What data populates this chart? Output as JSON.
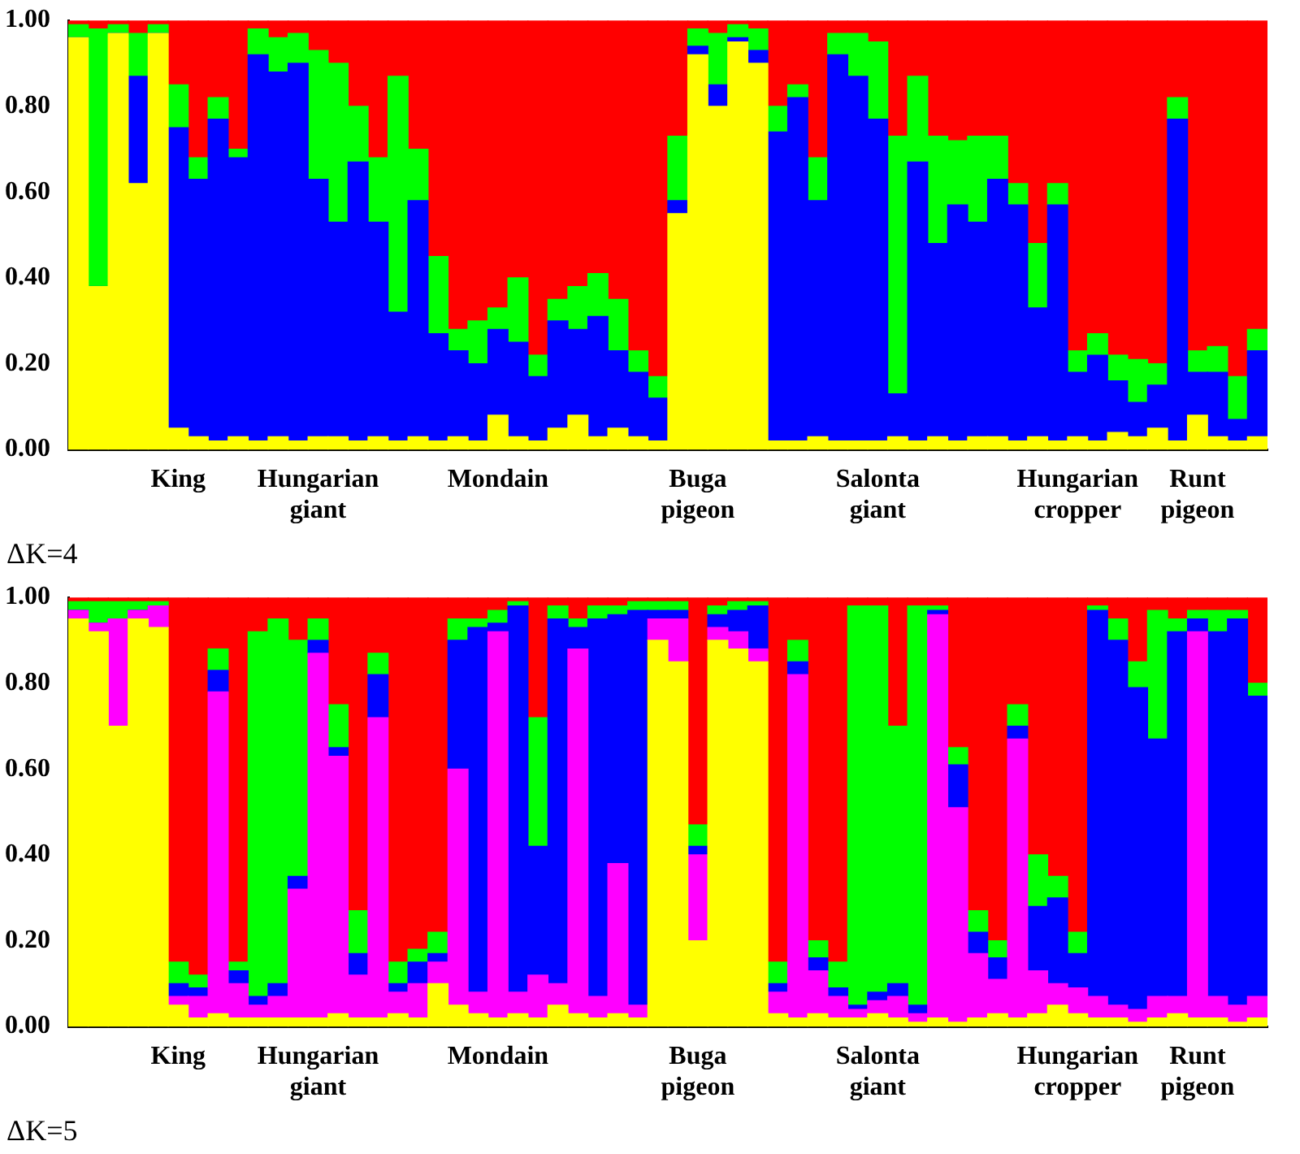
{
  "chart_data": [
    {
      "type": "bar",
      "stacked": true,
      "grid": false,
      "legend": false,
      "ylim": [
        0,
        1
      ],
      "yticks": [
        {
          "value": 0,
          "label": "0.00"
        },
        {
          "value": 0.2,
          "label": "0.20"
        },
        {
          "value": 0.4,
          "label": "0.40"
        },
        {
          "value": 0.6,
          "label": "0.60"
        },
        {
          "value": 0.8,
          "label": "0.80"
        },
        {
          "value": 1,
          "label": "1.00"
        }
      ],
      "categories": [
        null,
        null,
        null,
        null,
        null,
        "King",
        null,
        null,
        null,
        null,
        null,
        null,
        "Hungarian giant",
        null,
        null,
        null,
        null,
        null,
        null,
        null,
        null,
        "Mondain",
        null,
        null,
        null,
        null,
        null,
        null,
        null,
        null,
        null,
        "Buga pigeon",
        null,
        null,
        null,
        null,
        null,
        null,
        null,
        null,
        "Salonta giant",
        null,
        null,
        null,
        null,
        null,
        null,
        null,
        null,
        null,
        "Hungarian cropper",
        null,
        null,
        null,
        null,
        null,
        "Runt pigeon",
        null,
        null,
        null
      ],
      "series": [
        {
          "color": "#ffff00",
          "values": [
            0.96,
            0.38,
            0.97,
            0.62,
            0.97,
            0.05,
            0.03,
            0.02,
            0.03,
            0.02,
            0.03,
            0.02,
            0.03,
            0.03,
            0.02,
            0.03,
            0.02,
            0.03,
            0.02,
            0.03,
            0.02,
            0.08,
            0.03,
            0.02,
            0.05,
            0.08,
            0.03,
            0.05,
            0.03,
            0.02,
            0.55,
            0.92,
            0.8,
            0.95,
            0.9,
            0.02,
            0.02,
            0.03,
            0.02,
            0.02,
            0.02,
            0.03,
            0.02,
            0.03,
            0.02,
            0.03,
            0.03,
            0.02,
            0.03,
            0.02,
            0.03,
            0.02,
            0.04,
            0.03,
            0.05,
            0.02,
            0.08,
            0.03,
            0.02,
            0.03
          ]
        },
        {
          "color": "#0000ff",
          "values": [
            0,
            0,
            0,
            0.25,
            0,
            0.7,
            0.6,
            0.75,
            0.65,
            0.9,
            0.85,
            0.88,
            0.6,
            0.5,
            0.65,
            0.5,
            0.3,
            0.55,
            0.25,
            0.2,
            0.18,
            0.2,
            0.22,
            0.15,
            0.25,
            0.2,
            0.28,
            0.18,
            0.15,
            0.1,
            0.03,
            0.02,
            0.05,
            0.01,
            0.03,
            0.72,
            0.8,
            0.55,
            0.9,
            0.85,
            0.75,
            0.1,
            0.65,
            0.45,
            0.55,
            0.5,
            0.6,
            0.55,
            0.3,
            0.55,
            0.15,
            0.2,
            0.12,
            0.08,
            0.1,
            0.75,
            0.1,
            0.15,
            0.05,
            0.2
          ]
        },
        {
          "color": "#00ff00",
          "values": [
            0.03,
            0.6,
            0.02,
            0.1,
            0.02,
            0.1,
            0.05,
            0.05,
            0.02,
            0.06,
            0.08,
            0.07,
            0.3,
            0.37,
            0.13,
            0.15,
            0.55,
            0.12,
            0.18,
            0.05,
            0.1,
            0.05,
            0.15,
            0.05,
            0.05,
            0.1,
            0.1,
            0.12,
            0.05,
            0.05,
            0.15,
            0.04,
            0.12,
            0.03,
            0.05,
            0.06,
            0.03,
            0.1,
            0.05,
            0.1,
            0.18,
            0.6,
            0.2,
            0.25,
            0.15,
            0.2,
            0.1,
            0.05,
            0.15,
            0.05,
            0.05,
            0.05,
            0.06,
            0.1,
            0.05,
            0.05,
            0.05,
            0.06,
            0.1,
            0.05
          ]
        },
        {
          "color": "#ff0000",
          "values": [
            0.01,
            0.02,
            0.01,
            0.03,
            0.01,
            0.15,
            0.32,
            0.18,
            0.3,
            0.02,
            0.04,
            0.03,
            0.07,
            0.1,
            0.2,
            0.32,
            0.13,
            0.3,
            0.55,
            0.72,
            0.7,
            0.67,
            0.6,
            0.78,
            0.65,
            0.62,
            0.59,
            0.65,
            0.77,
            0.83,
            0.27,
            0.02,
            0.03,
            0.01,
            0.02,
            0.2,
            0.15,
            0.32,
            0.03,
            0.03,
            0.05,
            0.27,
            0.13,
            0.27,
            0.28,
            0.27,
            0.27,
            0.38,
            0.52,
            0.38,
            0.77,
            0.73,
            0.78,
            0.79,
            0.8,
            0.18,
            0.77,
            0.76,
            0.83,
            0.72
          ]
        }
      ],
      "annotations": [
        "ΔK=4"
      ]
    },
    {
      "type": "bar",
      "stacked": true,
      "grid": false,
      "legend": false,
      "ylim": [
        0,
        1
      ],
      "yticks": [
        {
          "value": 0,
          "label": "0.00"
        },
        {
          "value": 0.2,
          "label": "0.20"
        },
        {
          "value": 0.4,
          "label": "0.40"
        },
        {
          "value": 0.6,
          "label": "0.60"
        },
        {
          "value": 0.8,
          "label": "0.80"
        },
        {
          "value": 1,
          "label": "1.00"
        }
      ],
      "categories": [
        null,
        null,
        null,
        null,
        null,
        "King",
        null,
        null,
        null,
        null,
        null,
        null,
        "Hungarian giant",
        null,
        null,
        null,
        null,
        null,
        null,
        null,
        null,
        "Mondain",
        null,
        null,
        null,
        null,
        null,
        null,
        null,
        null,
        null,
        "Buga pigeon",
        null,
        null,
        null,
        null,
        null,
        null,
        null,
        null,
        "Salonta giant",
        null,
        null,
        null,
        null,
        null,
        null,
        null,
        null,
        null,
        "Hungarian cropper",
        null,
        null,
        null,
        null,
        null,
        "Runt pigeon",
        null,
        null,
        null
      ],
      "series": [
        {
          "color": "#ffff00",
          "values": [
            0.95,
            0.92,
            0.7,
            0.95,
            0.93,
            0.05,
            0.02,
            0.03,
            0.02,
            0.02,
            0.02,
            0.02,
            0.02,
            0.03,
            0.02,
            0.02,
            0.03,
            0.02,
            0.1,
            0.05,
            0.03,
            0.02,
            0.03,
            0.02,
            0.05,
            0.03,
            0.02,
            0.03,
            0.02,
            0.9,
            0.85,
            0.2,
            0.9,
            0.88,
            0.85,
            0.03,
            0.02,
            0.03,
            0.02,
            0.02,
            0.03,
            0.02,
            0.01,
            0.02,
            0.01,
            0.02,
            0.03,
            0.02,
            0.03,
            0.05,
            0.03,
            0.02,
            0.02,
            0.01,
            0.02,
            0.03,
            0.02,
            0.02,
            0.01,
            0.02
          ]
        },
        {
          "color": "#ff00ff",
          "values": [
            0.02,
            0.02,
            0.25,
            0.02,
            0.05,
            0.02,
            0.05,
            0.75,
            0.08,
            0.03,
            0.05,
            0.3,
            0.85,
            0.6,
            0.1,
            0.7,
            0.05,
            0.08,
            0.05,
            0.55,
            0.05,
            0.9,
            0.05,
            0.1,
            0.05,
            0.85,
            0.05,
            0.35,
            0.03,
            0.05,
            0.1,
            0.2,
            0.03,
            0.04,
            0.03,
            0.05,
            0.8,
            0.1,
            0.05,
            0.02,
            0.03,
            0.05,
            0.02,
            0.94,
            0.5,
            0.15,
            0.08,
            0.65,
            0.1,
            0.05,
            0.06,
            0.05,
            0.03,
            0.03,
            0.05,
            0.04,
            0.9,
            0.05,
            0.04,
            0.05
          ]
        },
        {
          "color": "#0000ff",
          "values": [
            0,
            0,
            0,
            0,
            0,
            0.03,
            0.02,
            0.05,
            0.03,
            0.02,
            0.03,
            0.03,
            0.03,
            0.02,
            0.05,
            0.1,
            0.02,
            0.05,
            0.02,
            0.3,
            0.85,
            0.02,
            0.9,
            0.3,
            0.85,
            0.05,
            0.88,
            0.58,
            0.92,
            0.02,
            0.02,
            0.02,
            0.03,
            0.05,
            0.1,
            0.02,
            0.03,
            0.03,
            0.02,
            0.01,
            0.02,
            0.03,
            0.02,
            0.01,
            0.1,
            0.05,
            0.05,
            0.03,
            0.15,
            0.2,
            0.08,
            0.9,
            0.85,
            0.75,
            0.6,
            0.85,
            0.03,
            0.85,
            0.9,
            0.7
          ]
        },
        {
          "color": "#00ff00",
          "values": [
            0.02,
            0.05,
            0.04,
            0.02,
            0.01,
            0.05,
            0.03,
            0.05,
            0.02,
            0.85,
            0.85,
            0.55,
            0.05,
            0.1,
            0.1,
            0.05,
            0.05,
            0.03,
            0.05,
            0.05,
            0.02,
            0.03,
            0.01,
            0.3,
            0.03,
            0.02,
            0.03,
            0.02,
            0.02,
            0.02,
            0.02,
            0.05,
            0.02,
            0.02,
            0.01,
            0.05,
            0.05,
            0.04,
            0.06,
            0.93,
            0.9,
            0.6,
            0.93,
            0.01,
            0.04,
            0.05,
            0.04,
            0.05,
            0.12,
            0.05,
            0.05,
            0.01,
            0.05,
            0.06,
            0.3,
            0.03,
            0.02,
            0.05,
            0.02,
            0.03
          ]
        },
        {
          "color": "#ff0000",
          "values": [
            0.01,
            0.01,
            0.01,
            0.01,
            0.01,
            0.85,
            0.88,
            0.12,
            0.85,
            0.08,
            0.05,
            0.1,
            0.05,
            0.25,
            0.73,
            0.13,
            0.85,
            0.82,
            0.78,
            0.05,
            0.05,
            0.03,
            0.01,
            0.28,
            0.02,
            0.05,
            0.02,
            0.02,
            0.01,
            0.01,
            0.01,
            0.53,
            0.02,
            0.01,
            0.01,
            0.85,
            0.1,
            0.8,
            0.85,
            0.02,
            0.02,
            0.3,
            0.02,
            0.02,
            0.35,
            0.73,
            0.8,
            0.25,
            0.6,
            0.65,
            0.78,
            0.02,
            0.05,
            0.15,
            0.03,
            0.05,
            0.03,
            0.03,
            0.03,
            0.2
          ]
        }
      ],
      "annotations": [
        "ΔK=5"
      ]
    }
  ]
}
